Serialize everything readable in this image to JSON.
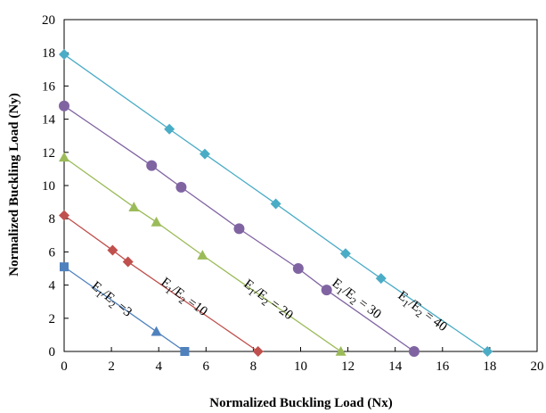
{
  "chart_data": {
    "type": "line",
    "title": "",
    "xlabel": "Normalized Buckling Load (Nx)",
    "ylabel": "Normalized Buckling Load (Ny)",
    "xlim": [
      0,
      20
    ],
    "ylim": [
      0,
      20
    ],
    "x_ticks": [
      "0",
      "2",
      "4",
      "6",
      "8",
      "10",
      "12",
      "14",
      "16",
      "18",
      "20"
    ],
    "y_ticks": [
      "0",
      "2",
      "4",
      "6",
      "8",
      "10",
      "12",
      "14",
      "16",
      "18",
      "20"
    ],
    "grid": false,
    "legend": "none",
    "series": [
      {
        "label_parts": [
          "E",
          "1",
          "/E",
          "2",
          " =3"
        ],
        "color": "#4f81bd",
        "marker": "square",
        "points": [
          [
            0,
            5.1
          ],
          [
            5.1,
            0
          ]
        ],
        "extra_markers": [
          {
            "x": 3.9,
            "y": 1.2,
            "marker": "triangle",
            "color": "#4f81bd"
          }
        ]
      },
      {
        "label_parts": [
          "E",
          "1",
          "/E",
          "2",
          " =10"
        ],
        "color": "#c0504d",
        "marker": "diamond",
        "points": [
          [
            0,
            8.2
          ],
          [
            2.05,
            6.1
          ],
          [
            2.7,
            5.4
          ],
          [
            8.2,
            0
          ]
        ]
      },
      {
        "label_parts": [
          "E",
          "1",
          "/E",
          "2",
          " = 20"
        ],
        "color": "#9bbb59",
        "marker": "triangle",
        "points": [
          [
            0,
            11.7
          ],
          [
            2.95,
            8.7
          ],
          [
            3.9,
            7.8
          ],
          [
            5.85,
            5.8
          ],
          [
            11.7,
            0
          ]
        ]
      },
      {
        "label_parts": [
          "E",
          "1",
          "/E",
          "2",
          " = 30"
        ],
        "color": "#8064a2",
        "marker": "circle",
        "points": [
          [
            0,
            14.8
          ],
          [
            3.7,
            11.2
          ],
          [
            4.95,
            9.9
          ],
          [
            7.4,
            7.4
          ],
          [
            9.9,
            5.0
          ],
          [
            11.1,
            3.7
          ],
          [
            14.8,
            0
          ]
        ]
      },
      {
        "label_parts": [
          "E",
          "1",
          "/E",
          "2",
          " = 40"
        ],
        "color": "#4bacc6",
        "marker": "diamond",
        "points": [
          [
            0,
            17.9
          ],
          [
            4.45,
            13.4
          ],
          [
            5.95,
            11.9
          ],
          [
            8.95,
            8.9
          ],
          [
            11.9,
            5.9
          ],
          [
            13.4,
            4.4
          ],
          [
            17.9,
            0
          ]
        ]
      }
    ]
  }
}
